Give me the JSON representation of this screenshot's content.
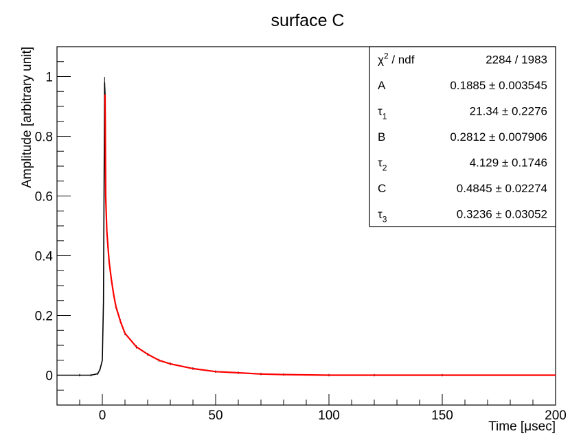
{
  "chart_data": {
    "type": "line",
    "title": "surface C",
    "xlabel": "Time [μsec]",
    "ylabel": "Amplitude [arbitrary unit]",
    "xlim": [
      -20,
      200
    ],
    "ylim": [
      -0.1,
      1.1
    ],
    "x_ticks": [
      0,
      50,
      100,
      150,
      200
    ],
    "x_tick_labels": [
      "0",
      "50",
      "100",
      "150",
      "200"
    ],
    "y_ticks": [
      0,
      0.2,
      0.4,
      0.6,
      0.8,
      1
    ],
    "y_tick_labels": [
      "0",
      "0.2",
      "0.4",
      "0.6",
      "0.8",
      "1"
    ],
    "grid": false,
    "series": [
      {
        "role": "data",
        "color": "#000000",
        "x": [
          -20,
          -10,
          -5,
          -2,
          -1,
          0,
          0.5,
          1.0,
          1.2,
          1.5,
          2,
          3,
          4,
          5,
          6,
          8,
          10,
          15,
          20,
          25,
          30,
          40,
          50,
          60,
          70,
          80,
          100,
          120,
          150,
          200
        ],
        "y": [
          0.0,
          0.0,
          0.0,
          0.005,
          0.02,
          0.05,
          0.25,
          0.98,
          0.94,
          0.6,
          0.48,
          0.38,
          0.32,
          0.27,
          0.23,
          0.18,
          0.14,
          0.095,
          0.07,
          0.05,
          0.038,
          0.022,
          0.012,
          0.008,
          0.004,
          0.002,
          0.0,
          0.0,
          0.0,
          0.0
        ]
      },
      {
        "role": "fit",
        "color": "#ff0000",
        "x": [
          1.2,
          1.5,
          2,
          3,
          4,
          5,
          6,
          8,
          10,
          15,
          20,
          25,
          30,
          40,
          50,
          60,
          70,
          80,
          100,
          120,
          150,
          200
        ],
        "y": [
          0.94,
          0.6,
          0.48,
          0.38,
          0.32,
          0.27,
          0.23,
          0.18,
          0.14,
          0.095,
          0.07,
          0.05,
          0.038,
          0.022,
          0.012,
          0.008,
          0.004,
          0.002,
          0.0,
          0.0,
          0.0,
          0.0
        ]
      }
    ],
    "stats_box": {
      "rows": [
        {
          "sym": "χ",
          "sup": "2",
          "sub": "",
          "rest": " / ndf",
          "value": "2284 / 1983"
        },
        {
          "sym": "A",
          "sup": "",
          "sub": "",
          "rest": "",
          "value": "0.1885 ± 0.003545"
        },
        {
          "sym": "τ",
          "sup": "",
          "sub": "1",
          "rest": "",
          "value": "21.34 ± 0.2276"
        },
        {
          "sym": "B",
          "sup": "",
          "sub": "",
          "rest": "",
          "value": "0.2812 ± 0.007906"
        },
        {
          "sym": "τ",
          "sup": "",
          "sub": "2",
          "rest": "",
          "value": "4.129 ± 0.1746"
        },
        {
          "sym": "C",
          "sup": "",
          "sub": "",
          "rest": "",
          "value": "0.4845 ± 0.02274"
        },
        {
          "sym": "τ",
          "sup": "",
          "sub": "3",
          "rest": "",
          "value": "0.3236 ± 0.03052"
        }
      ]
    }
  }
}
